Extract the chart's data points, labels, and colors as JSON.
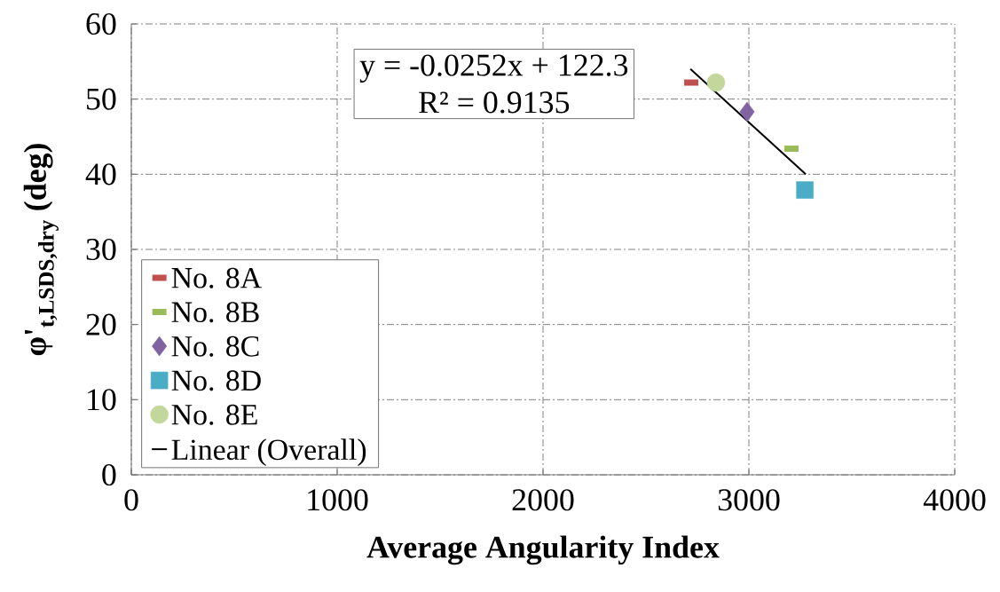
{
  "chart_data": {
    "type": "scatter",
    "xlabel": "Average Angularity Index",
    "ylabel": "φ'$_{t,LSDS,dry}$ (deg)",
    "xlim": [
      0,
      4000
    ],
    "xticks": [
      0,
      1000,
      2000,
      3000,
      4000
    ],
    "ylim": [
      0,
      60
    ],
    "yticks": [
      0,
      10,
      20,
      30,
      40,
      50,
      60
    ],
    "grid": true,
    "legend": "bottom left",
    "annotations": [
      "y = -0.0252x + 122.3",
      "R² = 0.9135"
    ],
    "series": [
      {
        "name": "No. 8A",
        "color": "#c0504d",
        "x": [
          2720
        ],
        "values": [
          52.2
        ]
      },
      {
        "name": "No. 8B",
        "color": "#9bbb59",
        "x": [
          3207
        ],
        "values": [
          43.4
        ]
      },
      {
        "name": "No. 8C",
        "color": "#8064a2",
        "marker": "diamond",
        "x": [
          2991
        ],
        "values": [
          48.3
        ]
      },
      {
        "name": "No. 8D",
        "color": "#4bacc6",
        "marker": "square",
        "x": [
          3272
        ],
        "values": [
          37.9
        ]
      },
      {
        "name": "No. 8E",
        "color": "#c3d69b",
        "marker": "circle",
        "x": [
          2840
        ],
        "values": [
          52.2
        ]
      },
      {
        "name": "Linear (Overall)",
        "type": "line",
        "color": "#000000",
        "marker": "none",
        "x": [
          2716,
          3276
        ],
        "values": [
          54.0,
          40.0
        ]
      }
    ]
  }
}
